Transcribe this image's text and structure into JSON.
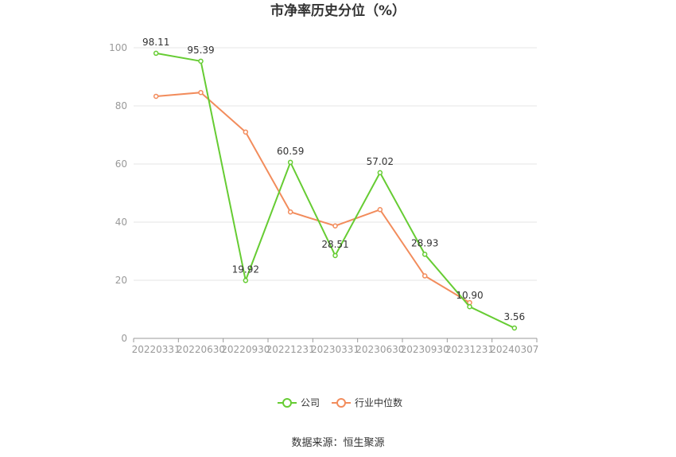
{
  "chart_data": {
    "type": "line",
    "title": "市净率历史分位（%）",
    "categories": [
      "20220331",
      "20220630",
      "20220930",
      "20221231",
      "20230331",
      "20230630",
      "20230930",
      "20231231",
      "20240307"
    ],
    "series": [
      {
        "name": "公司",
        "color": "#66cc33",
        "values": [
          98.11,
          95.39,
          19.92,
          60.59,
          28.51,
          57.02,
          28.93,
          10.9,
          3.56
        ],
        "labels": [
          "98.11",
          "95.39",
          "19.92",
          "60.59",
          "28.51",
          "57.02",
          "28.93",
          "10.90",
          "3.56"
        ]
      },
      {
        "name": "行业中位数",
        "color": "#f28c5c",
        "values": [
          83.3,
          84.6,
          71.0,
          43.5,
          38.7,
          44.3,
          21.5,
          12.3,
          null
        ]
      }
    ],
    "ylim": [
      0,
      100
    ],
    "yticks": [
      0,
      20,
      40,
      60,
      80,
      100
    ],
    "xlabel": "",
    "ylabel": "",
    "grid": true,
    "legend_position": "bottom-center",
    "source": "数据来源：恒生聚源"
  }
}
